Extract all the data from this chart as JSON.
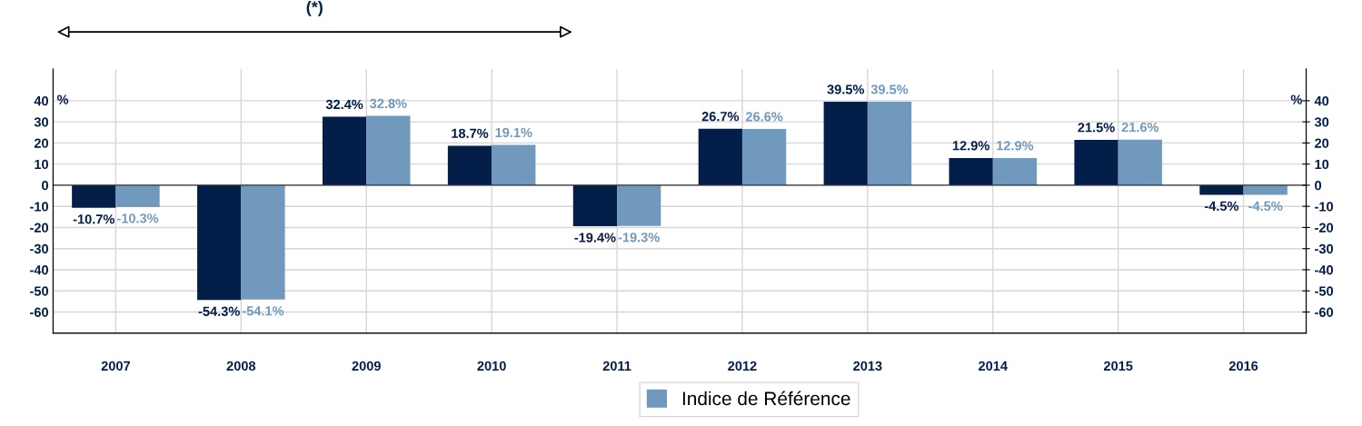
{
  "chart_data": {
    "type": "bar",
    "categories": [
      "2007",
      "2008",
      "2009",
      "2010",
      "2011",
      "2012",
      "2013",
      "2014",
      "2015",
      "2016"
    ],
    "series": [
      {
        "color": "#031e49",
        "values": [
          -10.7,
          -54.3,
          32.4,
          18.7,
          -19.4,
          26.7,
          39.5,
          12.9,
          21.5,
          -4.5
        ],
        "value_labels": [
          "-10.7%",
          "-54.3%",
          "32.4%",
          "18.7%",
          "-19.4%",
          "26.7%",
          "39.5%",
          "12.9%",
          "21.5%",
          "-4.5%"
        ]
      },
      {
        "name": "Indice de Référence",
        "color": "#7199be",
        "values": [
          -10.3,
          -54.1,
          32.8,
          19.1,
          -19.3,
          26.6,
          39.5,
          12.9,
          21.6,
          -4.5
        ],
        "value_labels": [
          "-10.3%",
          "-54.1%",
          "32.8%",
          "19.1%",
          "-19.3%",
          "26.6%",
          "39.5%",
          "12.9%",
          "21.6%",
          "-4.5%"
        ]
      }
    ],
    "ylabel": "%",
    "y2label": "%",
    "ylim": [
      -70,
      55
    ],
    "yticks": [
      -60,
      -50,
      -40,
      -30,
      -20,
      -10,
      0,
      10,
      20,
      30,
      40
    ],
    "y2lim": [
      -70,
      55
    ],
    "y2ticks": [
      -60,
      -50,
      -40,
      -30,
      -20,
      -10,
      0,
      10,
      20,
      30,
      40
    ],
    "annotations": [
      "(*)"
    ],
    "grid": true,
    "legend": "bottom"
  }
}
